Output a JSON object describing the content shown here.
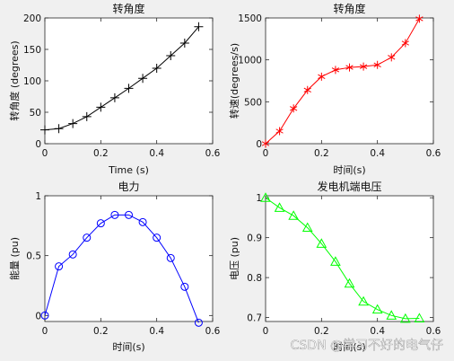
{
  "figure_background": "#f0f0f0",
  "watermark": "CSDN @学习不好的电气仔",
  "chart_data": [
    {
      "type": "line",
      "title": "转角度",
      "xlabel": "Time (s)",
      "ylabel": "转角度 (degrees)",
      "xlim": [
        0,
        0.6
      ],
      "ylim": [
        0,
        200
      ],
      "xticks": [
        0,
        0.2,
        0.4,
        0.6
      ],
      "yticks": [
        0,
        50,
        100,
        150,
        200
      ],
      "series": [
        {
          "color": "#000000",
          "marker": "plus",
          "x": [
            0,
            0.05,
            0.1,
            0.15,
            0.2,
            0.25,
            0.3,
            0.35,
            0.4,
            0.45,
            0.5,
            0.55
          ],
          "y": [
            22,
            24,
            32,
            43,
            58,
            73,
            88,
            104,
            120,
            140,
            160,
            186
          ]
        }
      ]
    },
    {
      "type": "line",
      "title": "转角度",
      "xlabel": "时间(s)",
      "ylabel": "转速(degrees/s)",
      "xlim": [
        0,
        0.6
      ],
      "ylim": [
        0,
        1500
      ],
      "xticks": [
        0,
        0.2,
        0.4,
        0.6
      ],
      "yticks": [
        0,
        500,
        1000,
        1500
      ],
      "series": [
        {
          "color": "#ff0000",
          "marker": "asterisk",
          "x": [
            0,
            0.05,
            0.1,
            0.15,
            0.2,
            0.25,
            0.3,
            0.35,
            0.4,
            0.45,
            0.5,
            0.55
          ],
          "y": [
            0,
            150,
            420,
            640,
            800,
            880,
            910,
            920,
            940,
            1030,
            1200,
            1490
          ]
        }
      ]
    },
    {
      "type": "line",
      "title": "电力",
      "xlabel": "时间(s)",
      "ylabel": "能量 (pu)",
      "xlim": [
        0,
        0.6
      ],
      "ylim": [
        -0.05,
        1
      ],
      "xticks": [
        0,
        0.2,
        0.4,
        0.6
      ],
      "yticks": [
        0,
        0.5,
        1
      ],
      "series": [
        {
          "color": "#0000ff",
          "marker": "circle",
          "x": [
            0,
            0.05,
            0.1,
            0.15,
            0.2,
            0.25,
            0.3,
            0.35,
            0.4,
            0.45,
            0.5,
            0.55
          ],
          "y": [
            0,
            0.41,
            0.51,
            0.65,
            0.77,
            0.84,
            0.84,
            0.78,
            0.65,
            0.48,
            0.24,
            -0.06
          ]
        }
      ]
    },
    {
      "type": "line",
      "title": "发电机端电压",
      "xlabel": "时间(s)",
      "ylabel": "电压 (pu)",
      "xlim": [
        0,
        0.6
      ],
      "ylim": [
        0.69,
        1.005
      ],
      "xticks": [
        0,
        0.2,
        0.4,
        0.6
      ],
      "yticks": [
        0.7,
        0.8,
        0.9,
        1
      ],
      "series": [
        {
          "color": "#00ff00",
          "marker": "triangle",
          "x": [
            0,
            0.05,
            0.1,
            0.15,
            0.2,
            0.25,
            0.3,
            0.35,
            0.4,
            0.45,
            0.5,
            0.55
          ],
          "y": [
            1.0,
            0.975,
            0.955,
            0.925,
            0.885,
            0.84,
            0.785,
            0.74,
            0.72,
            0.705,
            0.697,
            0.698
          ]
        }
      ]
    }
  ]
}
